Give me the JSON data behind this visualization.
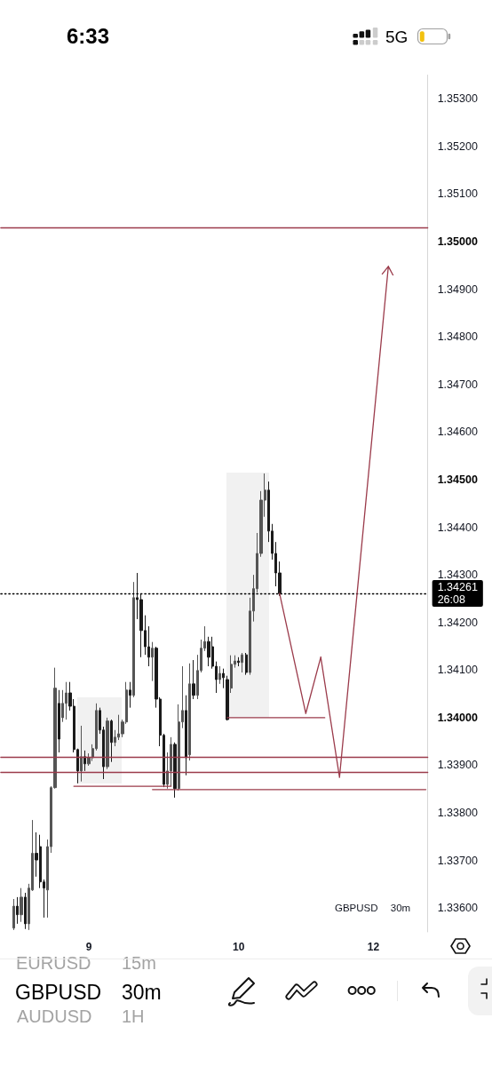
{
  "chart_data": {
    "type": "candlestick",
    "categories": [
      null,
      null,
      null,
      null,
      null,
      null,
      null,
      null,
      null,
      null,
      null,
      null,
      null,
      null,
      null,
      null,
      null,
      null,
      null,
      null,
      null,
      null,
      null,
      "9",
      null,
      null,
      null,
      null,
      null,
      null,
      null,
      null,
      null,
      null,
      null,
      null,
      null,
      null,
      null,
      null,
      null,
      null,
      null,
      null,
      null,
      null,
      null,
      null,
      null,
      null,
      null,
      null,
      null,
      null,
      null,
      null,
      null,
      null,
      null,
      null,
      null,
      null,
      null,
      "10",
      null,
      null,
      null,
      null,
      null,
      null,
      null,
      null,
      null,
      null,
      null,
      null,
      null,
      null,
      null,
      null,
      null,
      null,
      null,
      null,
      null,
      null,
      null,
      null,
      null,
      null,
      null,
      null,
      null,
      null,
      null,
      null,
      null,
      null,
      null,
      "12",
      null,
      null,
      null,
      null,
      null,
      null,
      null,
      null,
      null,
      null,
      null,
      null,
      null,
      null
    ],
    "ohlc": [
      null,
      null,
      null,
      [
        1.33558,
        1.33619,
        1.33554,
        1.33604
      ],
      [
        1.33604,
        1.33623,
        1.33567,
        1.33586
      ],
      [
        1.33586,
        1.33642,
        1.33571,
        1.33623
      ],
      [
        1.33623,
        1.33632,
        1.33556,
        1.33567
      ],
      [
        1.33567,
        1.33651,
        1.33554,
        1.33642
      ],
      [
        1.33638,
        1.33785,
        1.33636,
        1.33715
      ],
      [
        1.33715,
        1.33759,
        1.33666,
        1.33701
      ],
      [
        1.33729,
        1.33754,
        1.33642,
        1.33655
      ],
      [
        1.33655,
        1.3366,
        1.3358,
        1.33642
      ],
      [
        1.33638,
        1.33744,
        1.3358,
        1.33729
      ],
      [
        1.33729,
        1.33856,
        1.33716,
        1.33853
      ],
      [
        1.33853,
        1.34105,
        1.33851,
        1.34062
      ],
      [
        1.3403,
        1.34058,
        1.33927,
        1.33955
      ],
      [
        1.34,
        1.34058,
        1.33991,
        1.3403
      ],
      [
        1.3403,
        1.34075,
        1.33996,
        1.34052
      ],
      [
        1.34052,
        1.34075,
        1.34015,
        1.34024
      ],
      [
        1.34024,
        1.34039,
        1.33927,
        1.33933
      ],
      [
        1.33933,
        1.33935,
        1.33862,
        1.33888
      ],
      [
        1.33888,
        1.33983,
        1.33866,
        1.33918
      ],
      [
        1.33918,
        1.33931,
        1.33888,
        1.33903
      ],
      [
        1.33903,
        1.33925,
        1.33899,
        1.33916
      ],
      [
        1.33916,
        1.33944,
        1.33909,
        1.33935
      ],
      [
        1.33935,
        1.3403,
        1.33931,
        1.34015
      ],
      [
        1.34015,
        1.34021,
        1.33966,
        1.33974
      ],
      [
        1.33974,
        1.33981,
        1.33871,
        1.33897
      ],
      [
        1.33897,
        1.34,
        1.33892,
        1.33993
      ],
      [
        1.33993,
        1.33996,
        1.33907,
        1.33948
      ],
      [
        1.33948,
        1.33974,
        1.3394,
        1.33959
      ],
      [
        1.33959,
        1.34006,
        1.33953,
        1.33966
      ],
      [
        1.33966,
        1.33996,
        1.33959,
        1.33991
      ],
      [
        1.33991,
        1.34075,
        1.33987,
        1.34058
      ],
      [
        1.34058,
        1.34075,
        1.34021,
        1.34047
      ],
      [
        1.34047,
        1.34285,
        1.34043,
        1.34252
      ],
      [
        1.34252,
        1.34304,
        1.34207,
        1.34248
      ],
      [
        1.34248,
        1.34261,
        1.34127,
        1.34183
      ],
      [
        1.34183,
        1.34215,
        1.34132,
        1.34149
      ],
      [
        1.34149,
        1.34192,
        1.34108,
        1.34127
      ],
      [
        1.34127,
        1.34159,
        1.34077,
        1.34146
      ],
      [
        1.34146,
        1.34149,
        1.34021,
        1.34039
      ],
      [
        1.34039,
        1.34043,
        1.3394,
        1.33963
      ],
      [
        1.33963,
        1.33966,
        1.33854,
        1.3386
      ],
      [
        1.3386,
        1.33927,
        1.33851,
        1.33888
      ],
      [
        1.33888,
        1.33959,
        1.33856,
        1.33944
      ],
      [
        1.33944,
        1.33948,
        1.33832,
        1.33851
      ],
      [
        1.33851,
        1.34028,
        1.33847,
        1.33991
      ],
      [
        1.33991,
        1.34108,
        1.33978,
        1.34015
      ],
      [
        1.34015,
        1.34047,
        1.33879,
        1.33916
      ],
      [
        1.33922,
        1.34114,
        1.3391,
        1.34071
      ],
      [
        1.34071,
        1.34121,
        1.34039,
        1.34047
      ],
      [
        1.34047,
        1.34132,
        1.34039,
        1.34099
      ],
      [
        1.34099,
        1.34164,
        1.34095,
        1.34146
      ],
      [
        1.34146,
        1.34192,
        1.3414,
        1.3416
      ],
      [
        1.3416,
        1.3417,
        1.34108,
        1.34127
      ],
      [
        1.34149,
        1.3417,
        1.34103,
        1.34108
      ],
      [
        1.34108,
        1.34118,
        1.34052,
        1.3408
      ],
      [
        1.3408,
        1.34108,
        1.34071,
        1.34093
      ],
      [
        1.34093,
        1.34103,
        1.34062,
        1.34084
      ],
      [
        1.3408,
        1.34088,
        1.33994,
        1.33996
      ],
      [
        1.34062,
        1.34131,
        1.34052,
        1.34112
      ],
      [
        1.34112,
        1.34131,
        1.34105,
        1.34119
      ],
      [
        1.34119,
        1.34127,
        1.34108,
        1.34116
      ],
      [
        1.34116,
        1.34136,
        1.34095,
        1.34132
      ],
      [
        1.34132,
        1.34136,
        1.3409,
        1.34095
      ],
      [
        1.34095,
        1.34252,
        1.3409,
        1.34224
      ],
      [
        1.34224,
        1.343,
        1.34202,
        1.34271
      ],
      [
        1.34271,
        1.34388,
        1.34263,
        1.34345
      ],
      [
        1.34345,
        1.34476,
        1.34338,
        1.34457
      ],
      [
        1.34457,
        1.34513,
        1.34422,
        1.34478
      ],
      [
        1.34478,
        1.34496,
        1.34369,
        1.34392
      ],
      [
        1.34392,
        1.34407,
        1.34332,
        1.34345
      ],
      [
        1.34345,
        1.34369,
        1.34276,
        1.34304
      ],
      [
        1.34304,
        1.34328,
        1.34256,
        1.34261
      ],
      null,
      null,
      null,
      null,
      null,
      null,
      null,
      null,
      null,
      null,
      null,
      null,
      null,
      null,
      null,
      null,
      null,
      null,
      null,
      null,
      null,
      null,
      null,
      null,
      null,
      null,
      null,
      null,
      null,
      null,
      null,
      null,
      null,
      null,
      null,
      null,
      null,
      null,
      null
    ],
    "colors": [
      null,
      null,
      null,
      "#555555",
      "#1a1a1a",
      "#555555",
      "#1a1a1a",
      "#555555",
      "#555555",
      "#1a1a1a",
      "#1a1a1a",
      "#1a1a1a",
      "#555555",
      "#555555",
      "#555555",
      "#1a1a1a",
      "#555555",
      "#555555",
      "#1a1a1a",
      "#1a1a1a",
      "#1a1a1a",
      "#555555",
      "#1a1a1a",
      "#555555",
      "#555555",
      "#555555",
      "#1a1a1a",
      "#1a1a1a",
      "#555555",
      "#1a1a1a",
      "#555555",
      "#555555",
      "#555555",
      "#555555",
      "#1a1a1a",
      "#555555",
      "#1a1a1a",
      "#1a1a1a",
      "#1a1a1a",
      "#1a1a1a",
      "#555555",
      "#1a1a1a",
      "#1a1a1a",
      "#1a1a1a",
      "#555555",
      "#555555",
      "#1a1a1a",
      "#555555",
      "#555555",
      "#1a1a1a",
      "#555555",
      "#1a1a1a",
      "#555555",
      "#555555",
      "#555555",
      "#1a1a1a",
      "#1a1a1a",
      "#1a1a1a",
      "#555555",
      "#1a1a1a",
      "#1a1a1a",
      "#555555",
      "#555555",
      "#1a1a1a",
      "#555555",
      "#1a1a1a",
      "#555555",
      "#555555",
      "#555555",
      "#555555",
      "#555555",
      "#1a1a1a",
      "#1a1a1a",
      "#1a1a1a",
      "#1a1a1a",
      null,
      null,
      null,
      null,
      null,
      null,
      null,
      null,
      null,
      null,
      null,
      null,
      null,
      null,
      null,
      null,
      null,
      null,
      null,
      null,
      null,
      null,
      null,
      null,
      null,
      null,
      null,
      null,
      null,
      null,
      null,
      null,
      null,
      null,
      null,
      null,
      null,
      null,
      null
    ],
    "ylim": [
      1.3355,
      1.3535
    ],
    "yticks": [
      {
        "value": 1.336,
        "label": "1.33600"
      },
      {
        "value": 1.337,
        "label": "1.33700"
      },
      {
        "value": 1.338,
        "label": "1.33800"
      },
      {
        "value": 1.339,
        "label": "1.33900"
      },
      {
        "value": 1.34,
        "label": "1.34000"
      },
      {
        "value": 1.341,
        "label": "1.34100"
      },
      {
        "value": 1.342,
        "label": "1.34200"
      },
      {
        "value": 1.343,
        "label": "1.34300"
      },
      {
        "value": 1.344,
        "label": "1.34400"
      },
      {
        "value": 1.345,
        "label": "1.34500"
      },
      {
        "value": 1.346,
        "label": "1.34600"
      },
      {
        "value": 1.347,
        "label": "1.34700"
      },
      {
        "value": 1.348,
        "label": "1.34800"
      },
      {
        "value": 1.349,
        "label": "1.34900"
      },
      {
        "value": 1.35,
        "label": "1.35000"
      },
      {
        "value": 1.351,
        "label": "1.35100"
      },
      {
        "value": 1.352,
        "label": "1.35200"
      },
      {
        "value": 1.353,
        "label": "1.35300"
      }
    ],
    "series": [
      {
        "type": "line",
        "color": "#9b3b4b",
        "values": [
          null,
          null,
          null,
          null,
          null,
          null,
          null,
          null,
          null,
          null,
          null,
          null,
          null,
          null,
          null,
          null,
          null,
          null,
          null,
          null,
          null,
          null,
          null,
          null,
          null,
          null,
          null,
          null,
          null,
          null,
          null,
          null,
          null,
          null,
          null,
          null,
          null,
          null,
          null,
          null,
          null,
          null,
          null,
          null,
          null,
          null,
          null,
          null,
          null,
          null,
          null,
          null,
          null,
          null,
          null,
          null,
          null,
          null,
          null,
          null,
          1.34,
          null,
          null,
          null,
          null,
          null,
          null,
          null,
          null,
          null,
          null,
          null,
          null,
          null,
          null,
          null,
          null,
          null,
          null,
          null,
          null,
          null,
          null,
          null,
          null,
          null,
          1.34,
          null,
          null,
          null,
          null,
          null,
          null,
          null,
          null,
          null,
          null,
          null,
          null,
          null,
          null,
          null,
          null,
          null,
          null,
          null,
          null,
          null,
          null,
          null,
          null,
          null,
          null,
          null
        ]
      },
      {
        "type": "line",
        "color": "#9b3b4b",
        "values": [
          null,
          null,
          null,
          null,
          null,
          null,
          null,
          null,
          null,
          null,
          null,
          null,
          null,
          null,
          null,
          null,
          null,
          null,
          null,
          1.33856,
          null,
          null,
          null,
          null,
          null,
          null,
          null,
          null,
          null,
          null,
          null,
          null,
          null,
          null,
          null,
          null,
          null,
          null,
          null,
          null,
          null,
          null,
          null,
          null,
          null,
          1.33856,
          null,
          null,
          null,
          null,
          null,
          null,
          null,
          null,
          null,
          null,
          null,
          null,
          null,
          null,
          null,
          null,
          null,
          null,
          null,
          null,
          null,
          null,
          null,
          null,
          null,
          null,
          null,
          null,
          null,
          null,
          null,
          null,
          null,
          null,
          null,
          null,
          null,
          null,
          null,
          null,
          null,
          null,
          null,
          null,
          null,
          null,
          null,
          null,
          null,
          null,
          null,
          null,
          null,
          null,
          null,
          null,
          null,
          null,
          null,
          null,
          null,
          null,
          null,
          null,
          null,
          null,
          null,
          null
        ]
      },
      {
        "type": "line",
        "color": "#9b3b4b",
        "values": [
          null,
          null,
          null,
          null,
          null,
          null,
          null,
          null,
          null,
          null,
          null,
          null,
          null,
          null,
          null,
          null,
          null,
          null,
          null,
          null,
          null,
          null,
          null,
          null,
          null,
          null,
          null,
          null,
          null,
          null,
          null,
          null,
          null,
          null,
          null,
          null,
          null,
          null,
          null,
          null,
          1.33849,
          null,
          null,
          null,
          null,
          null,
          null,
          null,
          null,
          null,
          null,
          null,
          null,
          null,
          null,
          null,
          null,
          null,
          null,
          null,
          null,
          null,
          null,
          null,
          null,
          null,
          null,
          null,
          null,
          null,
          null,
          null,
          null,
          null,
          null,
          null,
          null,
          null,
          null,
          null,
          null,
          null,
          null,
          null,
          null,
          null,
          null,
          null,
          null,
          null,
          null,
          null,
          null,
          null,
          null,
          null,
          null,
          null,
          null,
          null,
          null,
          null,
          null,
          null,
          null,
          null,
          null,
          null,
          null,
          null,
          null,
          null,
          null,
          1.33849
        ]
      }
    ],
    "ref_lines": [
      {
        "axis": "y",
        "value": 1.3503,
        "color": "#9b3b4b"
      },
      {
        "axis": "y",
        "value": 1.33918,
        "color": "#9b3b4b"
      },
      {
        "axis": "y",
        "value": 1.33886,
        "color": "#9b3b4b"
      },
      {
        "axis": "y",
        "value": 1.34261,
        "label": "1.34261\n26:08",
        "color": "#000000",
        "line_style": "dotted"
      }
    ],
    "annotations": [
      "GBPUSD 30m",
      "6:33",
      "5G",
      "EURUSD",
      "15m",
      "GBPUSD",
      "30m",
      "AUDUSD",
      "1H"
    ]
  }
}
